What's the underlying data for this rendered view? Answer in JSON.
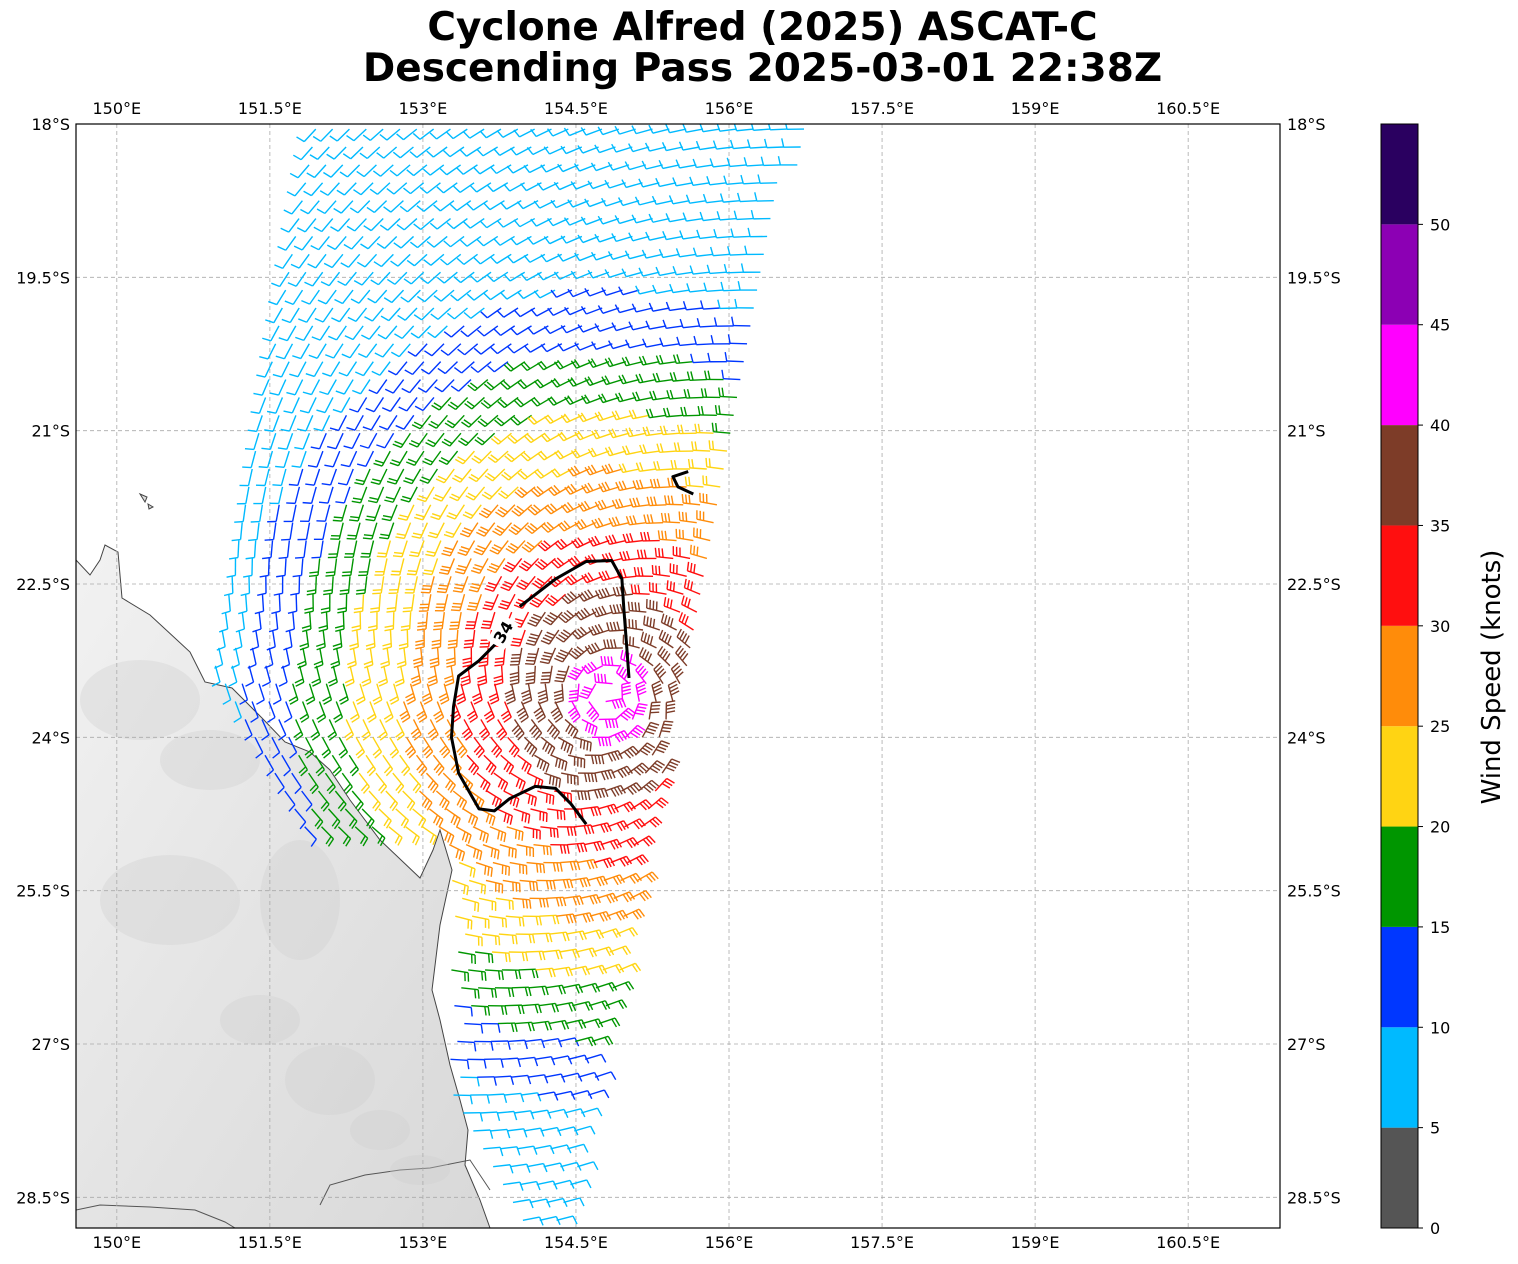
{
  "title_line1": "Cyclone Alfred (2025) ASCAT-C",
  "title_line2": "Descending Pass 2025-03-01 22:38Z",
  "map": {
    "lon_range": [
      149.6,
      161.4
    ],
    "lat_range": [
      -28.8,
      -18.0
    ],
    "lon_ticks": [
      {
        "value": 150.0,
        "label": "150°E"
      },
      {
        "value": 151.5,
        "label": "151.5°E"
      },
      {
        "value": 153.0,
        "label": "153°E"
      },
      {
        "value": 154.5,
        "label": "154.5°E"
      },
      {
        "value": 156.0,
        "label": "156°E"
      },
      {
        "value": 157.5,
        "label": "157.5°E"
      },
      {
        "value": 159.0,
        "label": "159°E"
      },
      {
        "value": 160.5,
        "label": "160.5°E"
      }
    ],
    "lat_ticks": [
      {
        "value": -18.0,
        "label": "18°S"
      },
      {
        "value": -19.5,
        "label": "19.5°S"
      },
      {
        "value": -21.0,
        "label": "21°S"
      },
      {
        "value": -22.5,
        "label": "22.5°S"
      },
      {
        "value": -24.0,
        "label": "24°S"
      },
      {
        "value": -25.5,
        "label": "25.5°S"
      },
      {
        "value": -27.0,
        "label": "27°S"
      },
      {
        "value": -28.5,
        "label": "28.5°S"
      }
    ],
    "grid": true,
    "contour_label": "34",
    "contour_34kt": [
      [
        153.95,
        -22.72
      ],
      [
        154.3,
        -22.45
      ],
      [
        154.6,
        -22.28
      ],
      [
        154.85,
        -22.27
      ],
      [
        154.95,
        -22.45
      ],
      [
        154.97,
        -22.75
      ],
      [
        155.0,
        -23.15
      ],
      [
        155.02,
        -23.42
      ]
    ],
    "contour_34kt_west": [
      [
        153.75,
        -23.05
      ],
      [
        153.55,
        -23.25
      ],
      [
        153.35,
        -23.4
      ],
      [
        153.3,
        -23.7
      ],
      [
        153.28,
        -24.0
      ],
      [
        153.35,
        -24.35
      ],
      [
        153.55,
        -24.7
      ],
      [
        153.7,
        -24.72
      ],
      [
        153.85,
        -24.6
      ],
      [
        154.1,
        -24.48
      ],
      [
        154.3,
        -24.5
      ],
      [
        154.45,
        -24.65
      ],
      [
        154.6,
        -24.85
      ]
    ],
    "contour_small": [
      [
        155.6,
        -21.4
      ],
      [
        155.45,
        -21.45
      ],
      [
        155.5,
        -21.55
      ],
      [
        155.65,
        -21.62
      ]
    ]
  },
  "colorbar": {
    "label": "Wind Speed (knots)",
    "bins": [
      0,
      5,
      10,
      15,
      20,
      25,
      30,
      35,
      40,
      45,
      50,
      55
    ],
    "colors": [
      "#555555",
      "#00baff",
      "#0037ff",
      "#009600",
      "#ffd413",
      "#ff8c0a",
      "#ff0f0f",
      "#7d3c28",
      "#ff00ff",
      "#8c00b4",
      "#2a0060"
    ],
    "tick_labels": [
      "0",
      "5",
      "10",
      "15",
      "20",
      "25",
      "30",
      "35",
      "40",
      "45",
      "50"
    ]
  }
}
